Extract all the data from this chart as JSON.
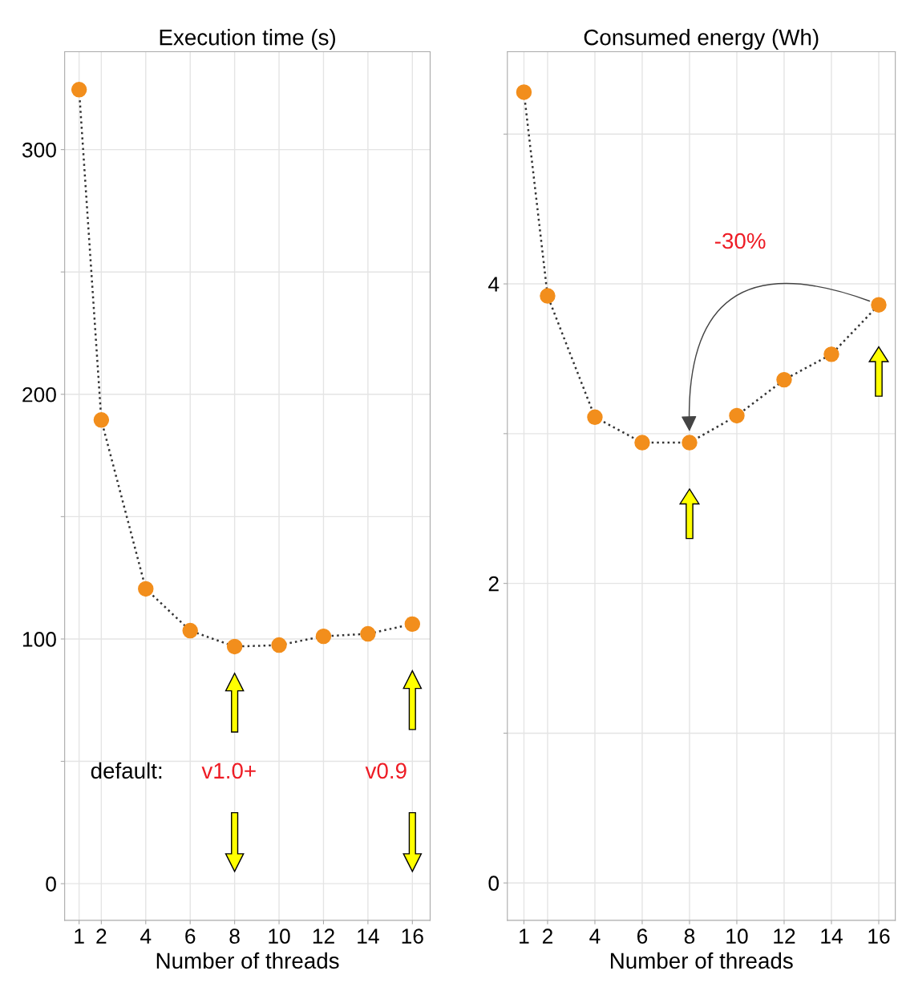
{
  "chart_data": [
    {
      "type": "line",
      "title": "Execution time (s)",
      "xlabel": "Number of threads",
      "x": [
        1,
        2,
        4,
        6,
        8,
        10,
        12,
        14,
        16
      ],
      "series": [
        {
          "color": "#f28e1c",
          "values": [
            324.5,
            189.5,
            120.5,
            103.4,
            96.9,
            97.5,
            101.1,
            102.1,
            106.1
          ]
        }
      ],
      "marker": "circle",
      "line_style": "dotted",
      "grid": true,
      "xlim": [
        0.35,
        16.8
      ],
      "xticks": [
        1,
        2,
        4,
        6,
        8,
        10,
        12,
        14,
        16
      ],
      "ylim": [
        -15,
        340
      ],
      "yticks": [
        0,
        {
          "value": 50,
          "label": null
        },
        100,
        {
          "value": 150,
          "label": null
        },
        200,
        {
          "value": 250,
          "label": null
        },
        300
      ],
      "annotations": [
        "default:",
        "v1.0+",
        "v0.9"
      ]
    },
    {
      "type": "line",
      "title": "Consumed energy (Wh)",
      "xlabel": "Number of threads",
      "x": [
        1,
        2,
        4,
        6,
        8,
        10,
        12,
        14,
        16
      ],
      "series": [
        {
          "color": "#f28e1c",
          "values": [
            5.28,
            3.92,
            3.11,
            2.94,
            2.94,
            3.12,
            3.36,
            3.53,
            3.86
          ]
        }
      ],
      "marker": "circle",
      "line_style": "dotted",
      "grid": true,
      "xlim": [
        0.3,
        16.7
      ],
      "xticks": [
        1,
        2,
        4,
        6,
        8,
        10,
        12,
        14,
        16
      ],
      "ylim": [
        -0.25,
        5.55
      ],
      "yticks": [
        0,
        {
          "value": 1,
          "label": null
        },
        2,
        {
          "value": 3,
          "label": null
        },
        4,
        {
          "value": 5,
          "label": null
        }
      ],
      "annotations": [
        "-30%"
      ]
    }
  ]
}
